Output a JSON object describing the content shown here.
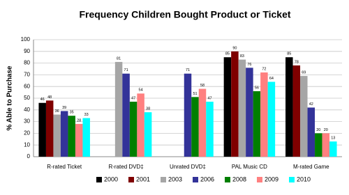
{
  "chart_data": {
    "type": "bar",
    "title": "Frequency Children Bought Product or Ticket",
    "y_label": "% Able to Purchase",
    "categories": [
      "R-rated Ticket",
      "R-rated DVD‡",
      "Unrated DVD‡",
      "PAL Music CD",
      "M-rated Game"
    ],
    "series": [
      {
        "name": "2000",
        "color": "#000000",
        "values": [
          46,
          null,
          null,
          85,
          85
        ]
      },
      {
        "name": "2001",
        "color": "#7f0000",
        "values": [
          48,
          null,
          null,
          90,
          78
        ]
      },
      {
        "name": "2003",
        "color": "#a6a6a6",
        "values": [
          36,
          81,
          null,
          83,
          69
        ]
      },
      {
        "name": "2006",
        "color": "#333399",
        "values": [
          39,
          71,
          71,
          76,
          42
        ]
      },
      {
        "name": "2008",
        "color": "#007f00",
        "values": [
          35,
          47,
          51,
          56,
          20
        ]
      },
      {
        "name": "2009",
        "color": "#ff8080",
        "values": [
          28,
          54,
          58,
          72,
          20
        ]
      },
      {
        "name": "2010",
        "color": "#00ffff",
        "values": [
          33,
          38,
          47,
          64,
          13
        ]
      }
    ],
    "ylim": [
      0,
      100
    ],
    "yticks": [
      0,
      10,
      20,
      30,
      40,
      50,
      60,
      70,
      80,
      90,
      100
    ],
    "grid": true,
    "legend": "bottom"
  }
}
